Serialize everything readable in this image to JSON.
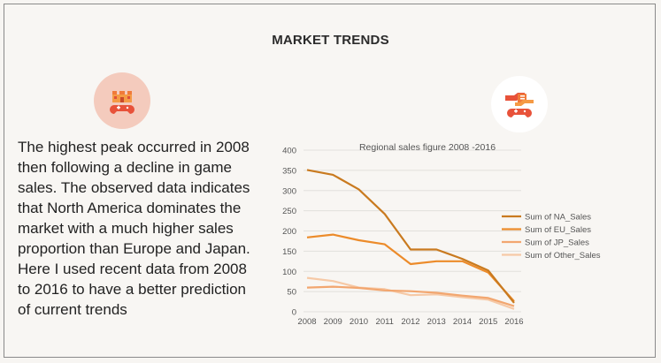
{
  "header": {
    "title": "MARKET TRENDS"
  },
  "icons": {
    "left": "game-castle-icon",
    "right": "gamepad-trade-icon"
  },
  "description": "The highest peak occurred in 2008 then following a decline in game sales. The observed data indicates that North America dominates the market with a much higher sales proportion than Europe and Japan. Here I used recent data from 2008 to 2016 to have a better prediction of current trends",
  "colors": {
    "na": "#c97a1f",
    "eu": "#ec8b2a",
    "jp": "#f2a66f",
    "other": "#f6c9a6",
    "grid": "#e2e0dc"
  },
  "chart_data": {
    "type": "line",
    "title": "Regional sales figure 2008 -2016",
    "xlabel": "",
    "ylabel": "",
    "x": [
      "2008",
      "2009",
      "2010",
      "2011",
      "2012",
      "2013",
      "2014",
      "2015",
      "2016"
    ],
    "ylim": [
      0,
      400
    ],
    "yticks": [
      0,
      50,
      100,
      150,
      200,
      250,
      300,
      350,
      400
    ],
    "legend_position": "right",
    "series": [
      {
        "name": "Sum of NA_Sales",
        "color_key": "na",
        "values": [
          351,
          339,
          303,
          242,
          154,
          154,
          131,
          102,
          22
        ]
      },
      {
        "name": "Sum of EU_Sales",
        "color_key": "eu",
        "values": [
          184,
          191,
          177,
          167,
          118,
          125,
          125,
          97,
          26
        ]
      },
      {
        "name": "Sum of JP_Sales",
        "color_key": "jp",
        "values": [
          60,
          62,
          59,
          53,
          51,
          47,
          40,
          34,
          14
        ]
      },
      {
        "name": "Sum of Other_Sales",
        "color_key": "other",
        "values": [
          84,
          76,
          60,
          56,
          41,
          43,
          36,
          30,
          7
        ]
      }
    ]
  }
}
